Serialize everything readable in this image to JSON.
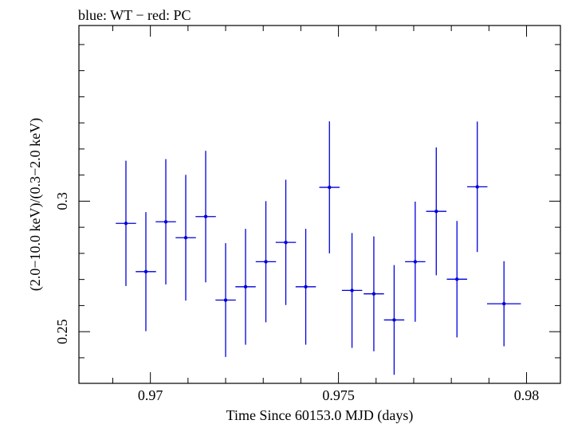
{
  "header": {
    "text": "blue: WT − red: PC"
  },
  "chart_data": {
    "type": "scatter",
    "title": "",
    "xlabel": "Time Since 60153.0 MJD (days)",
    "ylabel": "(2.0−10.0 keV)/(0.3−2.0 keV)",
    "xlim": [
      0.9681,
      0.9809
    ],
    "ylim": [
      0.2302,
      0.3673
    ],
    "x_ticks": [
      0.97,
      0.975,
      0.98
    ],
    "x_tick_labels": [
      "0.97",
      "0.975",
      "0.98"
    ],
    "y_ticks": [
      0.25,
      0.3
    ],
    "y_tick_labels": [
      "0.25",
      "0.3"
    ],
    "grid": false,
    "series": [
      {
        "name": "WT",
        "color": "#0000dd",
        "points": [
          {
            "x": 0.96935,
            "xerr": 0.00027,
            "y": 0.2915,
            "yerr": 0.024
          },
          {
            "x": 0.96988,
            "xerr": 0.00027,
            "y": 0.273,
            "yerr": 0.0228
          },
          {
            "x": 0.97041,
            "xerr": 0.00027,
            "y": 0.2921,
            "yerr": 0.024
          },
          {
            "x": 0.97094,
            "xerr": 0.00027,
            "y": 0.286,
            "yerr": 0.0241
          },
          {
            "x": 0.97147,
            "xerr": 0.00027,
            "y": 0.2941,
            "yerr": 0.0252
          },
          {
            "x": 0.972,
            "xerr": 0.00027,
            "y": 0.2621,
            "yerr": 0.0218
          },
          {
            "x": 0.97253,
            "xerr": 0.00027,
            "y": 0.2672,
            "yerr": 0.0222
          },
          {
            "x": 0.97307,
            "xerr": 0.00027,
            "y": 0.2768,
            "yerr": 0.0232
          },
          {
            "x": 0.9736,
            "xerr": 0.00027,
            "y": 0.2842,
            "yerr": 0.024
          },
          {
            "x": 0.97413,
            "xerr": 0.00027,
            "y": 0.2672,
            "yerr": 0.0222
          },
          {
            "x": 0.97476,
            "xerr": 0.00027,
            "y": 0.3053,
            "yerr": 0.0253
          },
          {
            "x": 0.97536,
            "xerr": 0.00027,
            "y": 0.2658,
            "yerr": 0.022
          },
          {
            "x": 0.97594,
            "xerr": 0.00027,
            "y": 0.2645,
            "yerr": 0.022
          },
          {
            "x": 0.97648,
            "xerr": 0.00027,
            "y": 0.2545,
            "yerr": 0.021
          },
          {
            "x": 0.97704,
            "xerr": 0.00027,
            "y": 0.2768,
            "yerr": 0.023
          },
          {
            "x": 0.9776,
            "xerr": 0.00027,
            "y": 0.2961,
            "yerr": 0.0245
          },
          {
            "x": 0.97815,
            "xerr": 0.00027,
            "y": 0.2701,
            "yerr": 0.0223
          },
          {
            "x": 0.97869,
            "xerr": 0.00027,
            "y": 0.3055,
            "yerr": 0.025
          },
          {
            "x": 0.9794,
            "xerr": 0.00045,
            "y": 0.2607,
            "yerr": 0.0163
          }
        ]
      }
    ]
  }
}
